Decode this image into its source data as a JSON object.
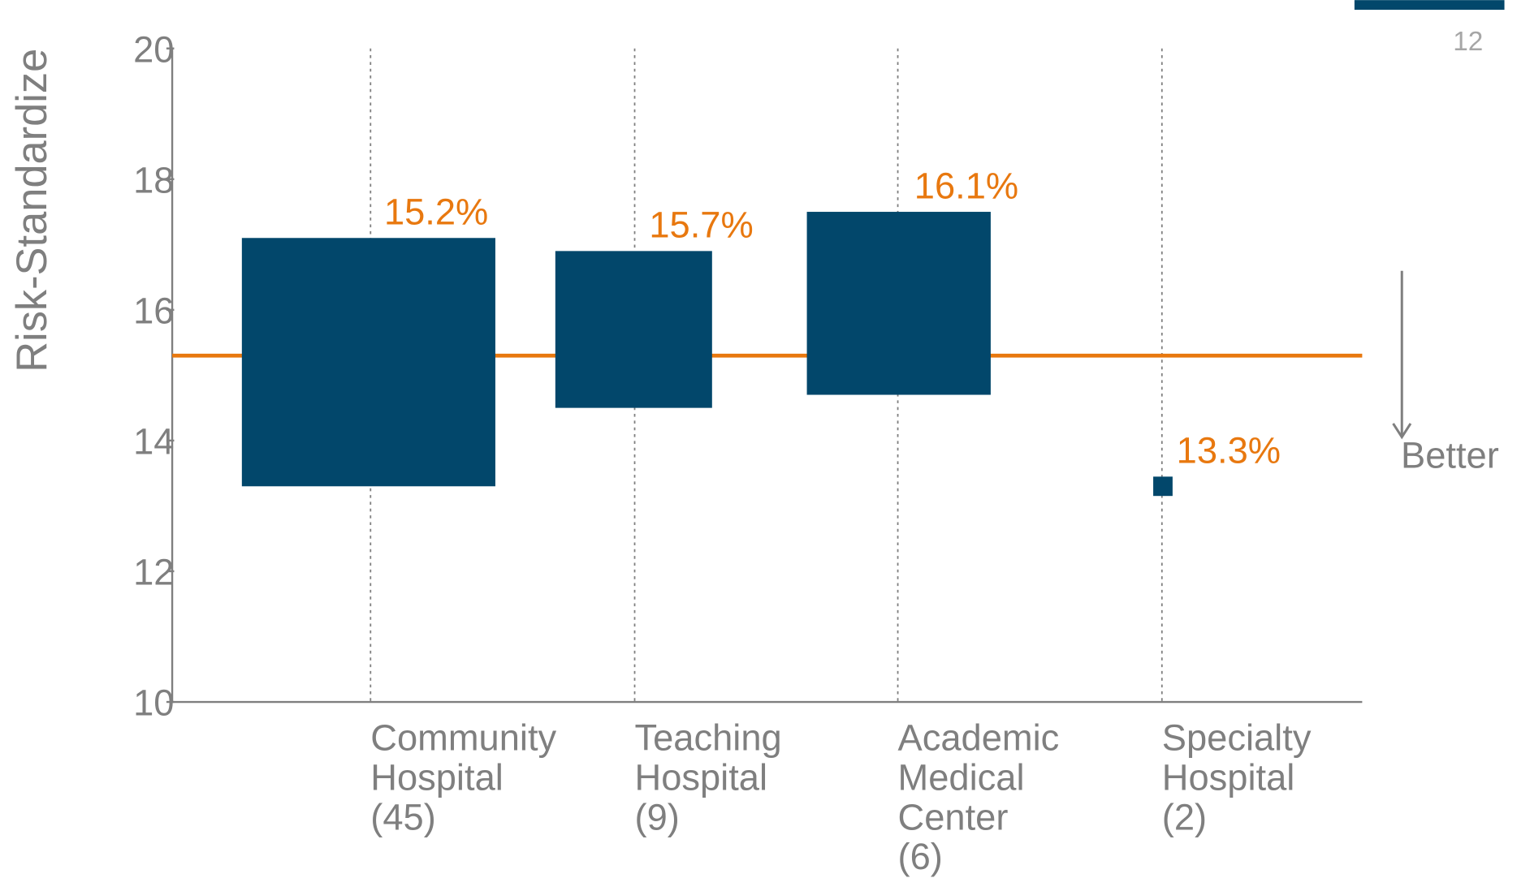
{
  "chart_data": {
    "type": "range_bar",
    "y_label": "Risk-Standardize",
    "categories": [
      [
        "Community",
        "Hospital",
        "(45)"
      ],
      [
        "Teaching",
        "Hospital",
        "(9)"
      ],
      [
        "Academic",
        "Medical",
        "Center",
        "(6)"
      ],
      [
        "Specialty",
        "Hospital",
        "(2)"
      ]
    ],
    "low": [
      13.3,
      14.5,
      14.7,
      null
    ],
    "high": [
      17.1,
      16.9,
      17.5,
      null
    ],
    "values": [
      15.2,
      15.7,
      16.1,
      13.3
    ],
    "value_labels": [
      "15.2%",
      "15.7%",
      "16.1%",
      "13.3%"
    ],
    "color": "#02476b",
    "label_color": "#e8780f",
    "reference_line": 15.3,
    "reference_color": "#e8780f",
    "ylim": [
      10,
      20
    ],
    "yticks": [
      10,
      12,
      14,
      16,
      18,
      20
    ],
    "annotation": "Better",
    "page_number": "12"
  }
}
